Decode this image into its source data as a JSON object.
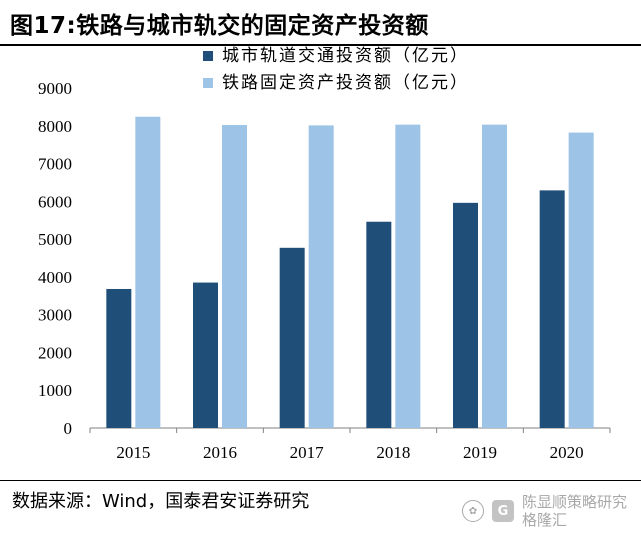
{
  "figure_title": "图17:铁路与城市轨交的固定资产投资额",
  "source_note": "数据来源：Wind，国泰君安证券研究",
  "watermark": {
    "account": "陈显顺策略研究",
    "platform": "格隆汇"
  },
  "colors": {
    "series_dark": "#1f4e79",
    "series_light": "#9dc3e6",
    "axis": "#808080"
  },
  "chart_data": {
    "type": "bar",
    "categories": [
      "2015",
      "2016",
      "2017",
      "2018",
      "2019",
      "2020"
    ],
    "series": [
      {
        "name": "城市轨道交通投资额（亿元）",
        "values": [
          3680,
          3850,
          4770,
          5460,
          5960,
          6290
        ]
      },
      {
        "name": "铁路固定资产投资额（亿元）",
        "values": [
          8240,
          8020,
          8010,
          8030,
          8030,
          7820
        ]
      }
    ],
    "ylim": [
      0,
      9000
    ],
    "yticks": [
      0,
      1000,
      2000,
      3000,
      4000,
      5000,
      6000,
      7000,
      8000,
      9000
    ],
    "legend_position": "top-center",
    "grid": false
  }
}
